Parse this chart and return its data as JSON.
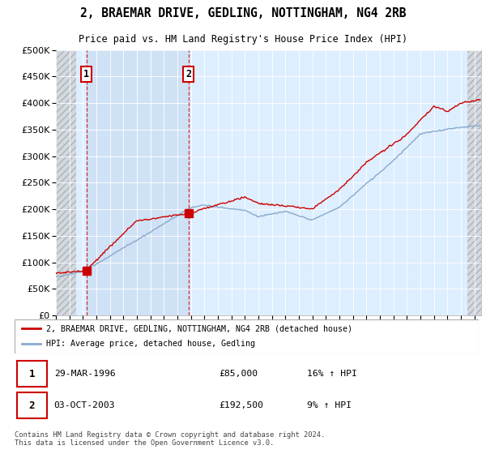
{
  "title": "2, BRAEMAR DRIVE, GEDLING, NOTTINGHAM, NG4 2RB",
  "subtitle": "Price paid vs. HM Land Registry's House Price Index (HPI)",
  "sale1_year": 1996.25,
  "sale1_price": 85000,
  "sale2_year": 2003.83,
  "sale2_price": 192500,
  "legend_line1": "2, BRAEMAR DRIVE, GEDLING, NOTTINGHAM, NG4 2RB (detached house)",
  "legend_line2": "HPI: Average price, detached house, Gedling",
  "footer": "Contains HM Land Registry data © Crown copyright and database right 2024.\nThis data is licensed under the Open Government Licence v3.0.",
  "table_row1_date": "29-MAR-1996",
  "table_row1_price": "£85,000",
  "table_row1_hpi": "16% ↑ HPI",
  "table_row2_date": "03-OCT-2003",
  "table_row2_price": "£192,500",
  "table_row2_hpi": "9% ↑ HPI",
  "line_color_red": "#cc0000",
  "line_color_blue": "#88aacc",
  "background_plot": "#ddeeff",
  "ylim_min": 0,
  "ylim_max": 500000,
  "xmin": 1994,
  "xmax": 2025.5,
  "hatch_left_end": 1995.5,
  "hatch_right_start": 2024.5
}
